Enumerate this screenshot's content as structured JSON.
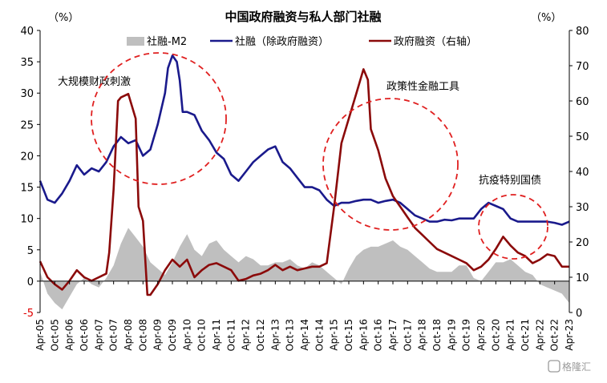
{
  "chart_data": {
    "type": "line",
    "title": "中国政府融资与私人部门社融",
    "left_unit": "（%）",
    "right_unit": "（%）",
    "ylim_left": [
      -5,
      40
    ],
    "ylim_right": [
      0,
      80
    ],
    "y_ticks_left": [
      "40",
      "35",
      "30",
      "25",
      "20",
      "15",
      "10",
      "5",
      "0",
      "-5"
    ],
    "y_ticks_right": [
      "80",
      "70",
      "60",
      "50",
      "40",
      "30",
      "20",
      "10",
      "0"
    ],
    "x_ticks": [
      "Apr-05",
      "Oct-05",
      "Apr-06",
      "Oct-06",
      "Apr-07",
      "Oct-07",
      "Apr-08",
      "Oct-08",
      "Apr-09",
      "Oct-09",
      "Apr-10",
      "Oct-10",
      "Apr-11",
      "Oct-11",
      "Apr-12",
      "Oct-12",
      "Apr-13",
      "Oct-13",
      "Apr-14",
      "Oct-14",
      "Apr-15",
      "Oct-15",
      "Apr-16",
      "Oct-16",
      "Apr-17",
      "Oct-17",
      "Apr-18",
      "Oct-18",
      "Apr-19",
      "Oct-19",
      "Apr-20",
      "Oct-20",
      "Apr-21",
      "Oct-21",
      "Apr-22",
      "Oct-22",
      "Apr-23"
    ],
    "legend": [
      "社融-M2",
      "社融（除政府融资）",
      "政府融资（右轴）"
    ],
    "legend_position": "top",
    "series": [
      {
        "name": "社融-M2",
        "axis": "left",
        "kind": "area",
        "color": "#bfbfbf",
        "x": [
          2005.25,
          2005.5,
          2005.75,
          2006.0,
          2006.25,
          2006.5,
          2006.75,
          2007.0,
          2007.25,
          2007.5,
          2007.75,
          2008.0,
          2008.25,
          2008.5,
          2008.75,
          2009.0,
          2009.25,
          2009.5,
          2009.75,
          2010.0,
          2010.25,
          2010.5,
          2010.75,
          2011.0,
          2011.25,
          2011.5,
          2011.75,
          2012.0,
          2012.25,
          2012.5,
          2012.75,
          2013.0,
          2013.25,
          2013.5,
          2013.75,
          2014.0,
          2014.25,
          2014.5,
          2014.75,
          2015.0,
          2015.25,
          2015.5,
          2015.75,
          2016.0,
          2016.25,
          2016.5,
          2016.75,
          2017.0,
          2017.25,
          2017.5,
          2017.75,
          2018.0,
          2018.25,
          2018.5,
          2018.75,
          2019.0,
          2019.25,
          2019.5,
          2019.75,
          2020.0,
          2020.25,
          2020.5,
          2020.75,
          2021.0,
          2021.25,
          2021.5,
          2021.75,
          2022.0,
          2022.25,
          2022.5,
          2022.75,
          2023.0,
          2023.25
        ],
        "values": [
          1.5,
          -2.0,
          -3.5,
          -4.5,
          -2.5,
          -0.5,
          0.5,
          -0.5,
          -1.0,
          0.5,
          2.5,
          6.0,
          8.5,
          7.0,
          5.5,
          3.0,
          2.0,
          1.0,
          3.0,
          5.5,
          7.5,
          5.0,
          4.0,
          6.0,
          6.5,
          5.0,
          4.0,
          3.0,
          4.0,
          3.5,
          2.5,
          2.5,
          3.0,
          3.0,
          3.5,
          2.5,
          2.0,
          3.0,
          2.5,
          1.5,
          0.5,
          -0.5,
          2.0,
          4.0,
          5.0,
          5.5,
          5.5,
          6.0,
          6.5,
          5.5,
          5.0,
          4.0,
          3.0,
          2.0,
          1.5,
          1.5,
          1.5,
          2.5,
          2.5,
          0.5,
          0.0,
          1.5,
          3.0,
          3.0,
          3.5,
          2.5,
          1.5,
          1.0,
          -0.5,
          -1.0,
          -1.5,
          -2.0,
          -3.5
        ]
      },
      {
        "name": "社融（除政府融资）",
        "axis": "left",
        "kind": "line",
        "color": "#1a1a8c",
        "x": [
          2005.25,
          2005.5,
          2005.75,
          2006.0,
          2006.25,
          2006.5,
          2006.75,
          2007.0,
          2007.25,
          2007.5,
          2007.75,
          2008.0,
          2008.25,
          2008.5,
          2008.75,
          2009.0,
          2009.25,
          2009.5,
          2009.6,
          2009.75,
          2009.9,
          2010.0,
          2010.1,
          2010.25,
          2010.5,
          2010.75,
          2011.0,
          2011.25,
          2011.5,
          2011.75,
          2012.0,
          2012.25,
          2012.5,
          2012.75,
          2013.0,
          2013.25,
          2013.5,
          2013.75,
          2014.0,
          2014.25,
          2014.5,
          2014.75,
          2015.0,
          2015.25,
          2015.5,
          2015.75,
          2016.0,
          2016.25,
          2016.5,
          2016.75,
          2017.0,
          2017.25,
          2017.5,
          2017.75,
          2018.0,
          2018.25,
          2018.5,
          2018.75,
          2019.0,
          2019.25,
          2019.5,
          2019.75,
          2020.0,
          2020.25,
          2020.5,
          2020.75,
          2021.0,
          2021.25,
          2021.5,
          2021.75,
          2022.0,
          2022.25,
          2022.5,
          2022.75,
          2023.0,
          2023.25
        ],
        "values": [
          16,
          13,
          12.5,
          14,
          16,
          18.5,
          17,
          18,
          17.5,
          19,
          21.5,
          23,
          22,
          22.5,
          20,
          21,
          25,
          30,
          34,
          36,
          35,
          32,
          27,
          27,
          26.5,
          24,
          22.5,
          20.5,
          19.5,
          17,
          16,
          17.5,
          19,
          20,
          21,
          21.5,
          19,
          18,
          16.5,
          15,
          15,
          14.5,
          13,
          12,
          12.5,
          12.5,
          12.8,
          13,
          13,
          12.5,
          12.8,
          13,
          12.5,
          11.5,
          10.5,
          10,
          9.5,
          9.5,
          9.8,
          9.7,
          10,
          10,
          10,
          11.5,
          12.5,
          12,
          11.5,
          10,
          9.5,
          9.5,
          9.5,
          9.5,
          9.5,
          9.3,
          9.0,
          9.5
        ]
      },
      {
        "name": "政府融资（右轴）",
        "axis": "right",
        "kind": "line",
        "color": "#8b0a0a",
        "x": [
          2005.25,
          2005.5,
          2005.75,
          2006.0,
          2006.25,
          2006.5,
          2006.75,
          2007.0,
          2007.25,
          2007.5,
          2007.6,
          2007.75,
          2007.9,
          2008.0,
          2008.25,
          2008.5,
          2008.6,
          2008.75,
          2008.9,
          2009.0,
          2009.25,
          2009.5,
          2009.75,
          2010.0,
          2010.25,
          2010.5,
          2010.75,
          2011.0,
          2011.25,
          2011.5,
          2011.75,
          2012.0,
          2012.25,
          2012.5,
          2012.75,
          2013.0,
          2013.25,
          2013.5,
          2013.75,
          2014.0,
          2014.25,
          2014.5,
          2014.75,
          2015.0,
          2015.25,
          2015.5,
          2015.75,
          2016.0,
          2016.25,
          2016.4,
          2016.5,
          2016.75,
          2017.0,
          2017.25,
          2017.5,
          2017.75,
          2018.0,
          2018.25,
          2018.5,
          2018.75,
          2019.0,
          2019.25,
          2019.5,
          2019.75,
          2020.0,
          2020.25,
          2020.5,
          2020.75,
          2021.0,
          2021.25,
          2021.5,
          2021.75,
          2022.0,
          2022.25,
          2022.5,
          2022.75,
          2023.0,
          2023.25
        ],
        "values": [
          14.5,
          10,
          8,
          6.5,
          9,
          12,
          10,
          9,
          10,
          11,
          17,
          35,
          60,
          61,
          62,
          55,
          30,
          26,
          5,
          5,
          8,
          12,
          15,
          13,
          15,
          10,
          12,
          13.5,
          14,
          13,
          12,
          9,
          9.5,
          10.5,
          11,
          12,
          13.5,
          12,
          13,
          12,
          12.5,
          13,
          13,
          14,
          30,
          48,
          55,
          62,
          69,
          66,
          52,
          46,
          38,
          33,
          30,
          27,
          24,
          22,
          20,
          18,
          17,
          16,
          15,
          14,
          12,
          13,
          15,
          18,
          21.5,
          19,
          17,
          16,
          14,
          15,
          16.5,
          16,
          13,
          13
        ]
      }
    ],
    "annotations": [
      "大规模财政刺激",
      "政策性金融工具",
      "抗疫特别国债"
    ],
    "grid": false
  },
  "watermark": "格隆汇"
}
